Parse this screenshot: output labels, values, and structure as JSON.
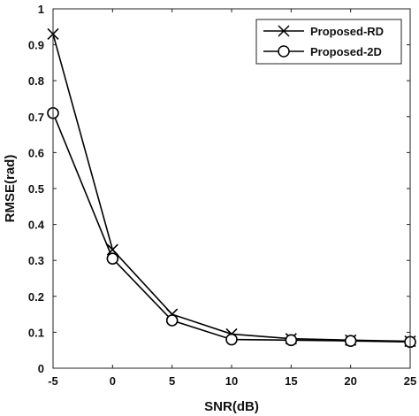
{
  "chart_data": {
    "type": "line",
    "xlabel": "SNR(dB)",
    "ylabel": "RMSE(rad)",
    "xlim": [
      -5,
      25
    ],
    "ylim": [
      0,
      1
    ],
    "x": [
      -5,
      0,
      5,
      10,
      15,
      20,
      25
    ],
    "xticks": [
      "-5",
      "0",
      "5",
      "10",
      "15",
      "20",
      "25"
    ],
    "yticks": [
      "0",
      "0.1",
      "0.2",
      "0.3",
      "0.4",
      "0.5",
      "0.6",
      "0.7",
      "0.8",
      "0.9",
      "1"
    ],
    "grid": false,
    "legend_position": "top-right",
    "series": [
      {
        "name": "Proposed-RD",
        "marker": "x",
        "color": "#000000",
        "values": [
          0.93,
          0.33,
          0.15,
          0.095,
          0.082,
          0.078,
          0.075
        ]
      },
      {
        "name": "Proposed-2D",
        "marker": "circle",
        "color": "#000000",
        "values": [
          0.71,
          0.305,
          0.133,
          0.08,
          0.078,
          0.076,
          0.073
        ]
      }
    ]
  }
}
